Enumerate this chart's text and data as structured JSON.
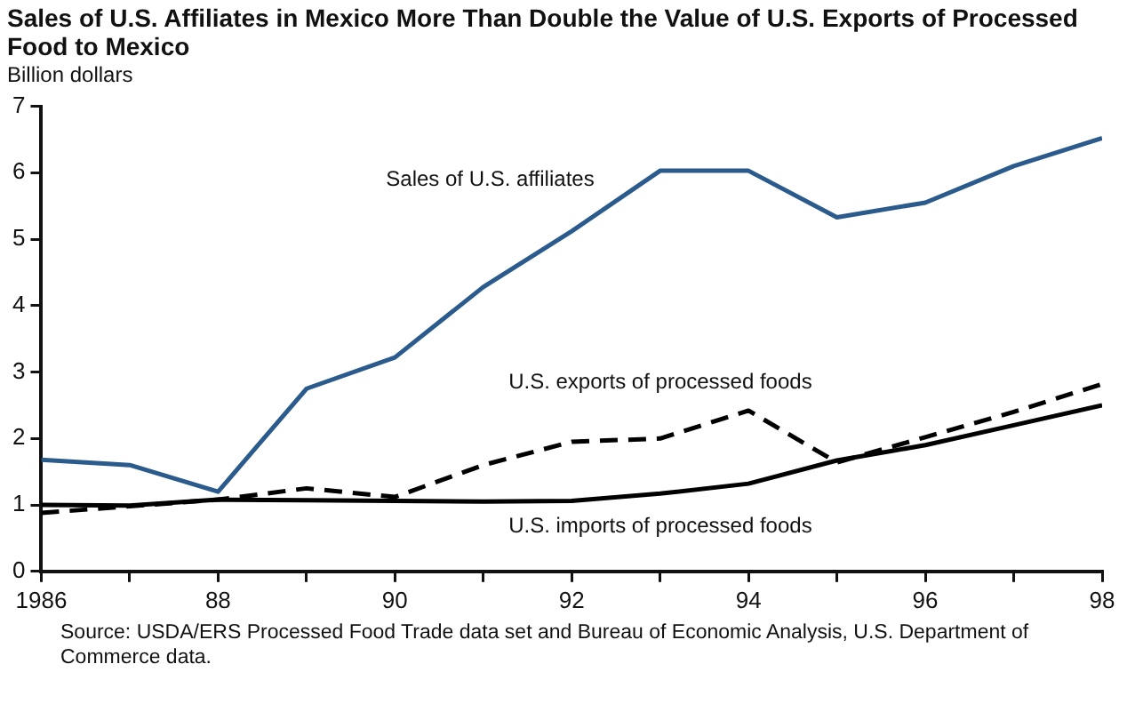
{
  "chart_data": {
    "type": "line",
    "title": "Sales of U.S. Affiliates in Mexico More Than Double the Value of U.S. Exports of Processed Food to Mexico",
    "ylabel": "Billion dollars",
    "x": [
      1986,
      1987,
      1988,
      1989,
      1990,
      1991,
      1992,
      1993,
      1994,
      1995,
      1996,
      1997,
      1998
    ],
    "series": [
      {
        "name": "Sales of U.S. affiliates",
        "color": "#2b5b8c",
        "line_style": "solid",
        "values": [
          1.68,
          1.6,
          1.2,
          2.75,
          3.22,
          4.28,
          5.12,
          6.03,
          6.03,
          5.33,
          5.55,
          6.1,
          6.52
        ]
      },
      {
        "name": "U.S. exports of processed foods",
        "color": "#000000",
        "line_style": "dashed",
        "values": [
          0.88,
          0.98,
          1.08,
          1.25,
          1.12,
          1.6,
          1.95,
          2.0,
          2.42,
          1.64,
          2.02,
          2.4,
          2.82
        ]
      },
      {
        "name": "U.S. imports of processed foods",
        "color": "#000000",
        "line_style": "solid",
        "values": [
          1.0,
          0.99,
          1.08,
          1.07,
          1.06,
          1.05,
          1.06,
          1.17,
          1.32,
          1.67,
          1.9,
          2.2,
          2.5
        ]
      }
    ],
    "xlim": [
      1986,
      1998
    ],
    "xticks": [
      1986,
      {
        "value": 1987,
        "label": null
      },
      {
        "value": 1988,
        "label": "88"
      },
      {
        "value": 1989,
        "label": null
      },
      {
        "value": 1990,
        "label": "90"
      },
      {
        "value": 1991,
        "label": null
      },
      {
        "value": 1992,
        "label": "92"
      },
      {
        "value": 1993,
        "label": null
      },
      {
        "value": 1994,
        "label": "94"
      },
      {
        "value": 1995,
        "label": null
      },
      {
        "value": 1996,
        "label": "96"
      },
      {
        "value": 1997,
        "label": null
      },
      {
        "value": 1998,
        "label": "98"
      }
    ],
    "ylim": [
      0,
      7
    ],
    "yticks": [
      0,
      1,
      2,
      3,
      4,
      5,
      6,
      7
    ],
    "grid": false,
    "legend": false,
    "marker": "none",
    "annotations": [
      "Source:  USDA/ERS Processed Food Trade data set and Bureau of Economic Analysis, U.S. Department of Commerce data."
    ]
  }
}
